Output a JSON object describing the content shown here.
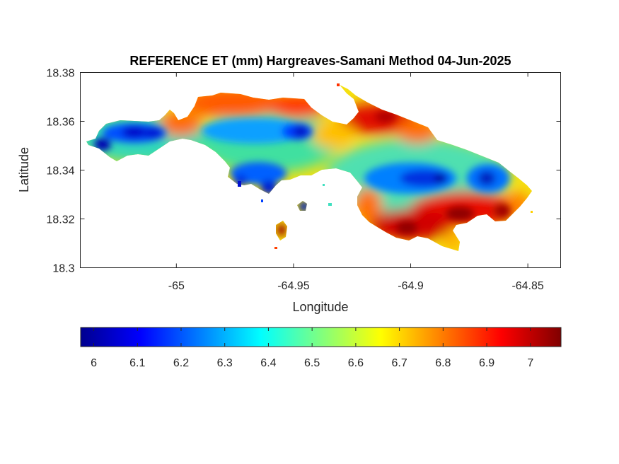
{
  "figure": {
    "title": "REFERENCE ET (mm) Hargreaves-Samani Method  04-Jun-2025",
    "xlabel": "Longitude",
    "ylabel": "Latitude"
  },
  "map": {
    "xlim": [
      -65.041,
      -64.836
    ],
    "ylim": [
      18.3,
      18.38
    ],
    "xticks": [
      {
        "value": -65,
        "label": "-65"
      },
      {
        "value": -64.95,
        "label": "-64.95"
      },
      {
        "value": -64.9,
        "label": "-64.9"
      },
      {
        "value": -64.85,
        "label": "-64.85"
      }
    ],
    "yticks": [
      {
        "value": 18.38,
        "label": "18.38"
      },
      {
        "value": 18.36,
        "label": "18.36"
      },
      {
        "value": 18.34,
        "label": "18.34"
      },
      {
        "value": 18.32,
        "label": "18.32"
      },
      {
        "value": 18.3,
        "label": "18.3"
      }
    ],
    "colormap": "jet"
  },
  "colorbar": {
    "range": [
      5.97,
      7.07
    ],
    "ticks": [
      {
        "value": 6,
        "label": "6"
      },
      {
        "value": 6.1,
        "label": "6.1"
      },
      {
        "value": 6.2,
        "label": "6.2"
      },
      {
        "value": 6.3,
        "label": "6.3"
      },
      {
        "value": 6.4,
        "label": "6.4"
      },
      {
        "value": 6.5,
        "label": "6.5"
      },
      {
        "value": 6.6,
        "label": "6.6"
      },
      {
        "value": 6.7,
        "label": "6.7"
      },
      {
        "value": 6.8,
        "label": "6.8"
      },
      {
        "value": 6.9,
        "label": "6.9"
      },
      {
        "value": 7,
        "label": "7"
      }
    ],
    "colors": [
      "#00008f",
      "#0000ff",
      "#00ffff",
      "#ffff00",
      "#ff0000",
      "#800000"
    ]
  },
  "chart_data": {
    "type": "heatmap",
    "title": "REFERENCE ET (mm) Hargreaves-Samani Method  04-Jun-2025",
    "xlabel": "Longitude",
    "ylabel": "Latitude",
    "xlim": [
      -65.041,
      -64.836
    ],
    "ylim": [
      18.3,
      18.38
    ],
    "color_range": [
      5.97,
      7.07
    ],
    "hotspots": [
      {
        "lon": -65.015,
        "lat": 18.354,
        "value": 6.05
      },
      {
        "lon": -65.025,
        "lat": 18.35,
        "value": 6.08
      },
      {
        "lon": -65.005,
        "lat": 18.354,
        "value": 6.1
      },
      {
        "lon": -64.951,
        "lat": 18.354,
        "value": 6.15
      },
      {
        "lon": -64.895,
        "lat": 18.336,
        "value": 6.1
      },
      {
        "lon": -64.886,
        "lat": 18.336,
        "value": 6.08
      },
      {
        "lon": -64.864,
        "lat": 18.336,
        "value": 6.15
      },
      {
        "lon": -64.96,
        "lat": 18.334,
        "value": 6.15
      },
      {
        "lon": -64.95,
        "lat": 18.325,
        "value": 6.0
      },
      {
        "lon": -64.913,
        "lat": 18.364,
        "value": 6.95
      },
      {
        "lon": -64.94,
        "lat": 18.36,
        "value": 6.75
      },
      {
        "lon": -64.975,
        "lat": 18.368,
        "value": 6.75
      },
      {
        "lon": -64.878,
        "lat": 18.322,
        "value": 7.05
      },
      {
        "lon": -64.86,
        "lat": 18.322,
        "value": 7.0
      },
      {
        "lon": -64.9,
        "lat": 18.316,
        "value": 7.0
      },
      {
        "lon": -64.946,
        "lat": 18.317,
        "value": 6.95
      }
    ]
  }
}
